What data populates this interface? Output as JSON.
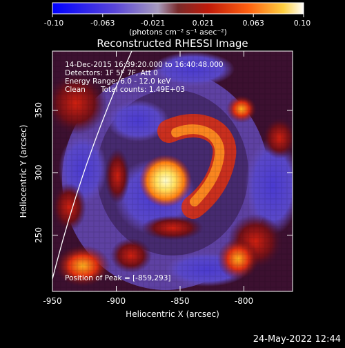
{
  "colorbar": {
    "ticks": [
      "-0.10",
      "-0.063",
      "-0.021",
      "0.021",
      "0.063",
      "0.10"
    ],
    "units": "(photons cm⁻² s⁻¹ asec⁻²)"
  },
  "title": "Reconstructed RHESSI Image",
  "info": {
    "line1": "14-Dec-2015 16:39:20.000 to 16:40:48.000",
    "line2": "Detectors: 1F 5F 7F, Att 0",
    "line3": "Energy Range: 6.0 - 12.0 keV",
    "line4_left": "Clean",
    "line4_right": "Total counts: 1.49E+03"
  },
  "peak_label": "Position of Peak = [-859,293]",
  "x_axis": {
    "label": "Heliocentric X (arcsec)",
    "ticks": [
      "-950",
      "-900",
      "-850",
      "-800"
    ]
  },
  "y_axis": {
    "label": "Heliocentric Y (arcsec)",
    "ticks": [
      "350",
      "300",
      "250"
    ]
  },
  "footer_date": "24-May-2022 12:44",
  "colors": {
    "background": "#000000",
    "colormap": [
      "#0000ff",
      "#6a43c7",
      "#a58fbc",
      "#9b3f45",
      "#c82010",
      "#ff7010",
      "#ffe060",
      "#ffffff"
    ]
  }
}
